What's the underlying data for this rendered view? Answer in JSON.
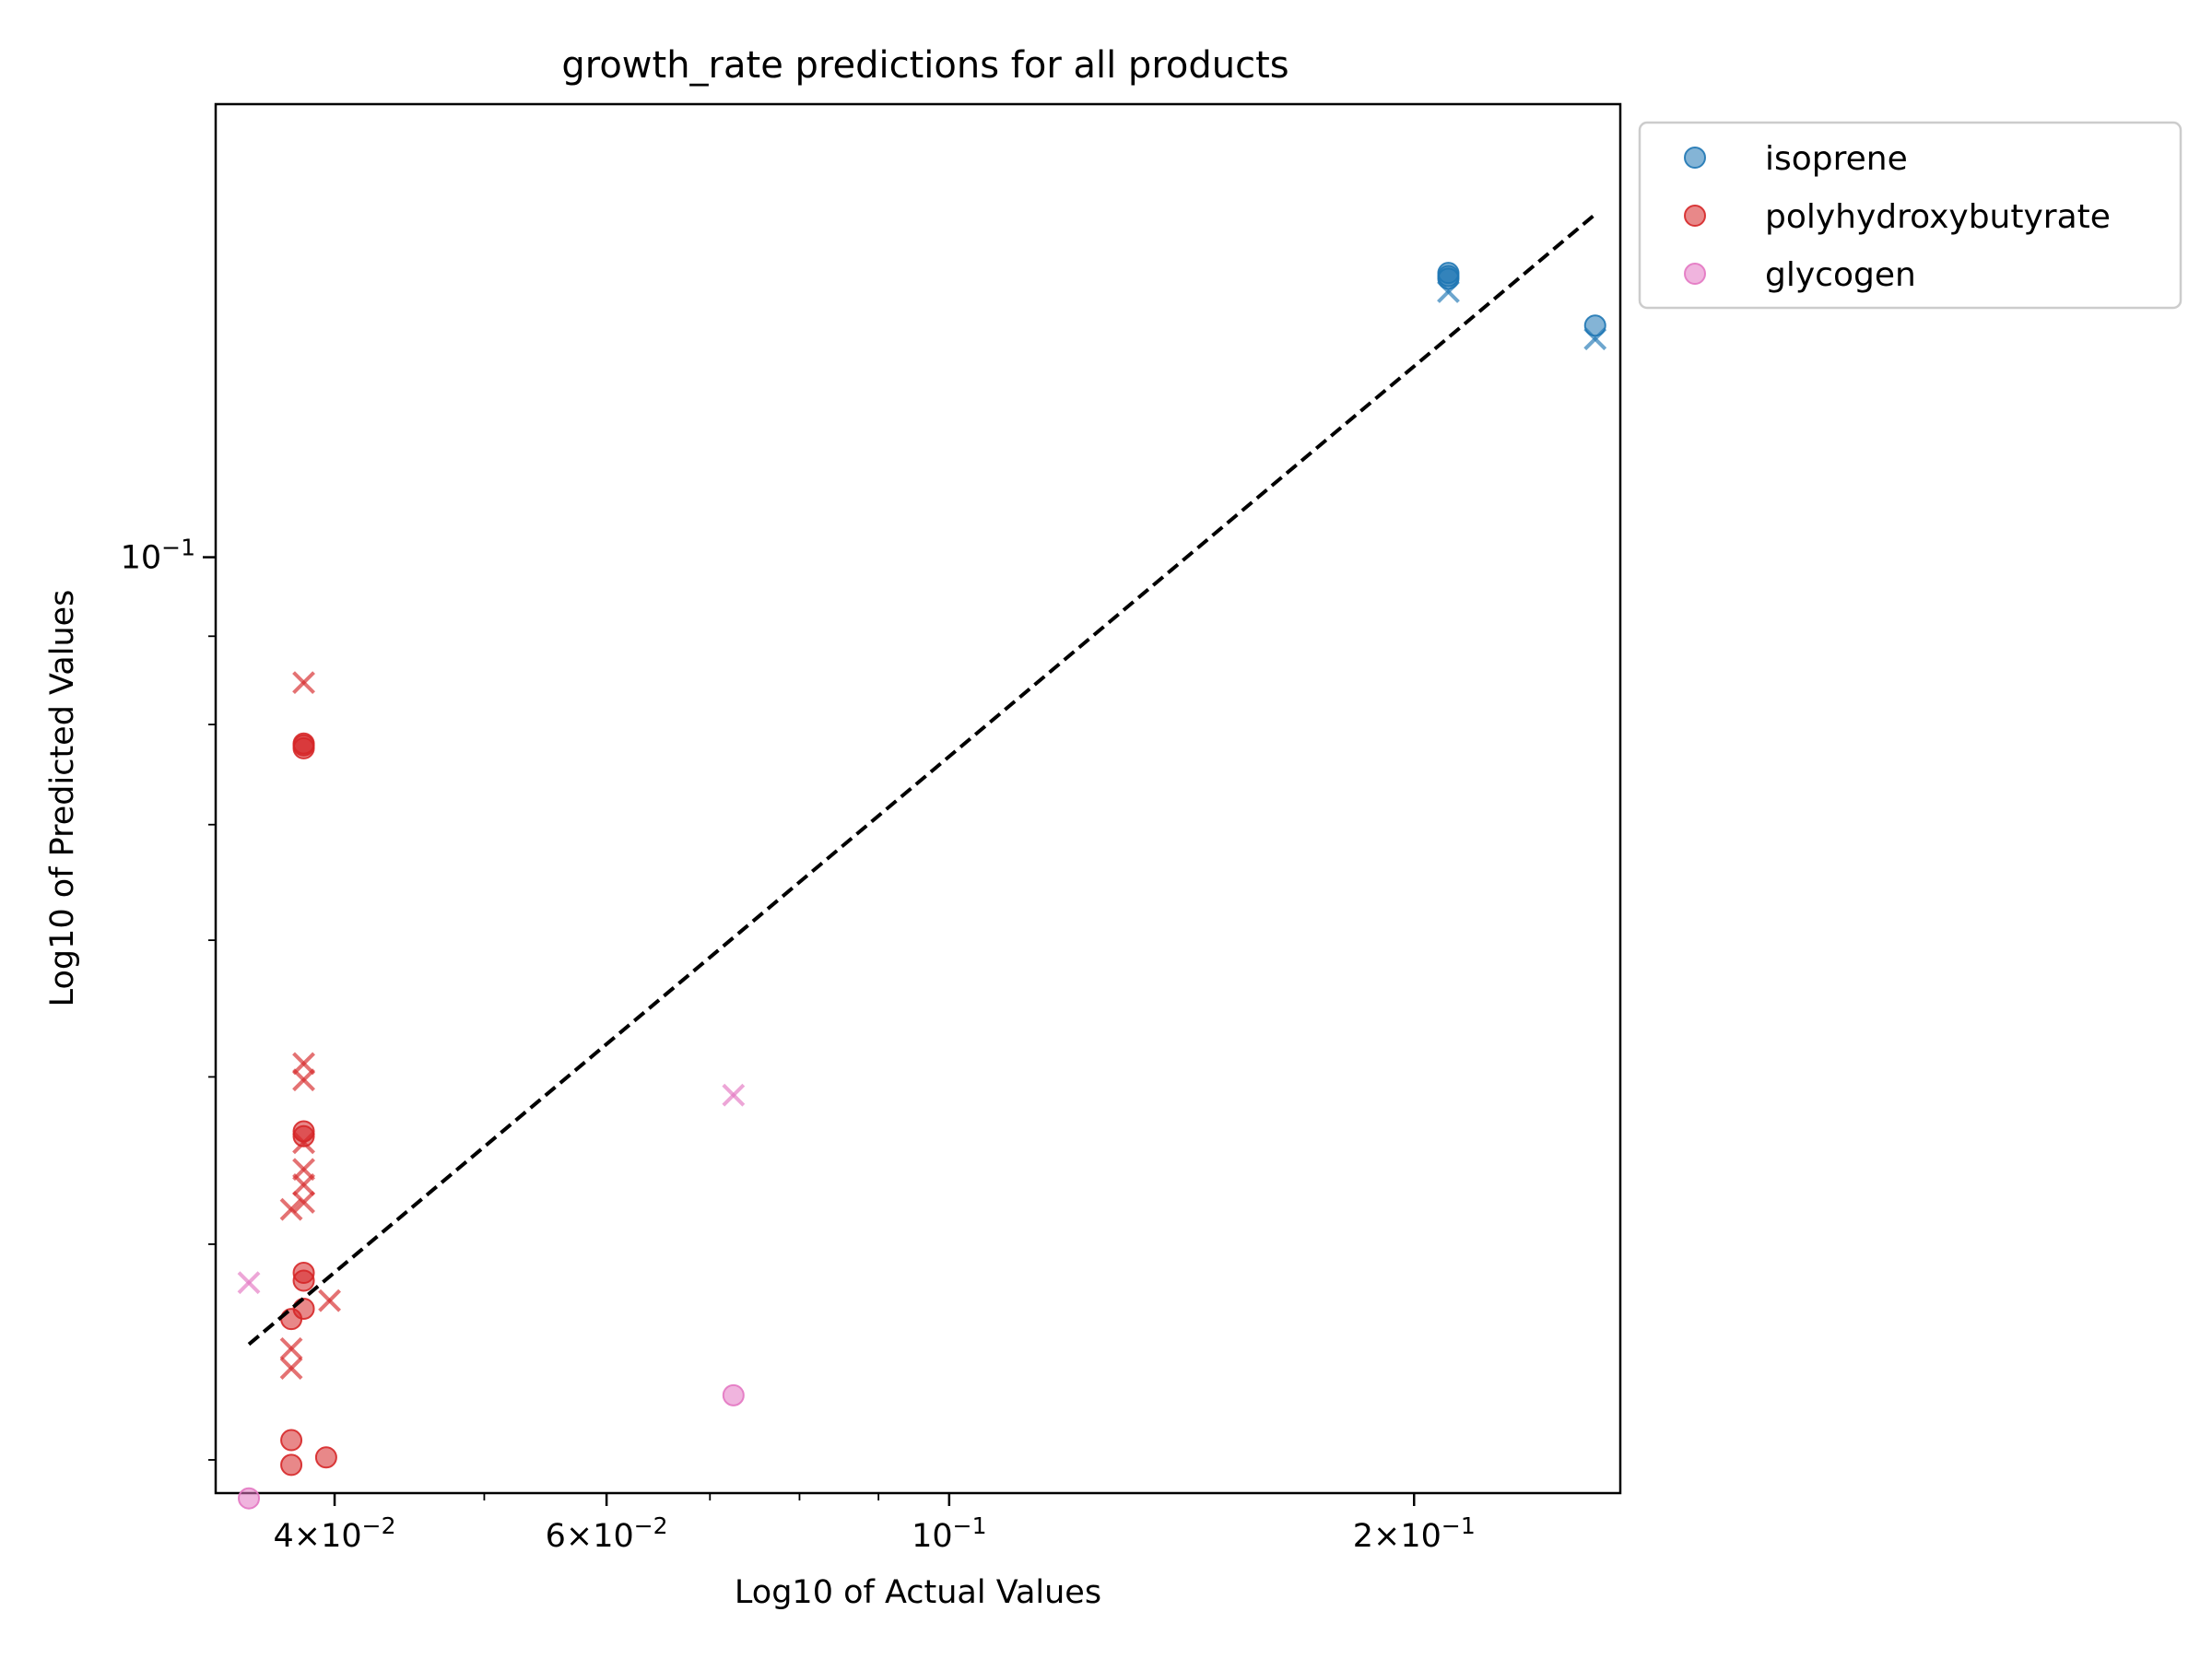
{
  "chart_data": {
    "type": "scatter",
    "title": "growth_rate predictions for all products",
    "xlabel": "Log10 of Actual Values",
    "ylabel": "Log10 of Predicted Values",
    "xscale": "log",
    "yscale": "log",
    "xlim": [
      0.0335,
      0.272
    ],
    "ylim": [
      0.0287,
      0.183
    ],
    "x_ticks": [
      {
        "value": 0.04,
        "base": "4×10",
        "exp": "−2"
      },
      {
        "value": 0.06,
        "base": "6×10",
        "exp": "−2"
      },
      {
        "value": 0.1,
        "base": "10",
        "exp": "−1"
      },
      {
        "value": 0.2,
        "base": "2×10",
        "exp": "−1"
      }
    ],
    "y_ticks": [
      {
        "value": 0.1,
        "base": "10",
        "exp": "−1"
      }
    ],
    "grid": false,
    "legend_position": "outside top-right",
    "reference_line": {
      "style": "dashed",
      "color": "#000000",
      "from": [
        0.0352,
        0.035
      ],
      "to": [
        0.262,
        0.158
      ]
    },
    "marker_legend": {
      "circle": "filled circle markers",
      "x": "x markers"
    },
    "series": [
      {
        "name": "isoprene",
        "color": "#1f77b4",
        "circle_points": [
          [
            0.2105,
            0.1461
          ],
          [
            0.2105,
            0.1455
          ],
          [
            0.2105,
            0.145
          ],
          [
            0.262,
            0.1362
          ]
        ],
        "x_points": [
          [
            0.2105,
            0.1425
          ],
          [
            0.262,
            0.1338
          ]
        ]
      },
      {
        "name": "polyhydroxybutyrate",
        "color": "#d62728",
        "circle_points": [
          [
            0.0382,
            0.0778
          ],
          [
            0.0382,
            0.0775
          ],
          [
            0.0382,
            0.078
          ],
          [
            0.0382,
            0.0465
          ],
          [
            0.0382,
            0.0462
          ],
          [
            0.0382,
            0.0385
          ],
          [
            0.0382,
            0.0381
          ],
          [
            0.0382,
            0.0367
          ],
          [
            0.0375,
            0.0362
          ],
          [
            0.0375,
            0.0308
          ],
          [
            0.0375,
            0.0298
          ],
          [
            0.0395,
            0.0301
          ]
        ],
        "x_points": [
          [
            0.0382,
            0.0846
          ],
          [
            0.0382,
            0.0509
          ],
          [
            0.0382,
            0.0498
          ],
          [
            0.0382,
            0.0458
          ],
          [
            0.0382,
            0.0442
          ],
          [
            0.0382,
            0.0433
          ],
          [
            0.0382,
            0.0423
          ],
          [
            0.0375,
            0.0419
          ],
          [
            0.0397,
            0.0371
          ],
          [
            0.0375,
            0.0348
          ],
          [
            0.0375,
            0.0339
          ]
        ]
      },
      {
        "name": "glycogen",
        "color": "#e377c2",
        "circle_points": [
          [
            0.0352,
            0.0285
          ],
          [
            0.0725,
            0.0327
          ]
        ],
        "x_points": [
          [
            0.0352,
            0.038
          ],
          [
            0.0725,
            0.0488
          ]
        ]
      }
    ]
  }
}
